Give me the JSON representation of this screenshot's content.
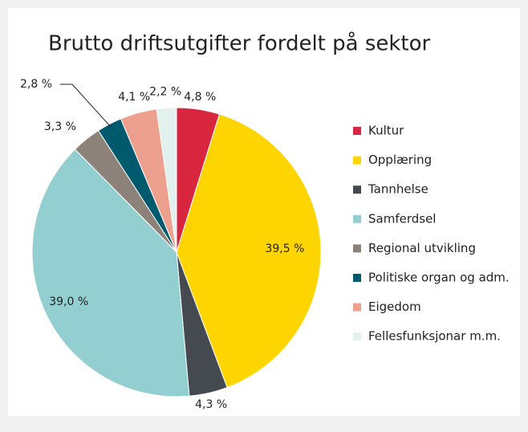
{
  "chart_data": {
    "type": "pie",
    "title": "Brutto driftsutgifter fordelt på sektor",
    "categories": [
      "Kultur",
      "Opplæring",
      "Tannhelse",
      "Samferdsel",
      "Regional utvikling",
      "Politiske organ og adm.",
      "Eigedom",
      "Fellesfunksjonar m.m."
    ],
    "values": [
      4.8,
      39.5,
      4.3,
      39.0,
      3.3,
      2.8,
      4.1,
      2.2
    ],
    "value_labels": [
      "4,8 %",
      "39,5 %",
      "4,3 %",
      "39,0 %",
      "3,3 %",
      "2,8 %",
      "4,1 %",
      "2,2 %"
    ],
    "colors": [
      "#d7263d",
      "#ffd500",
      "#454a50",
      "#93cfd0",
      "#8c8279",
      "#005a6e",
      "#eea08f",
      "#e3f1ee"
    ],
    "legend": "right"
  }
}
